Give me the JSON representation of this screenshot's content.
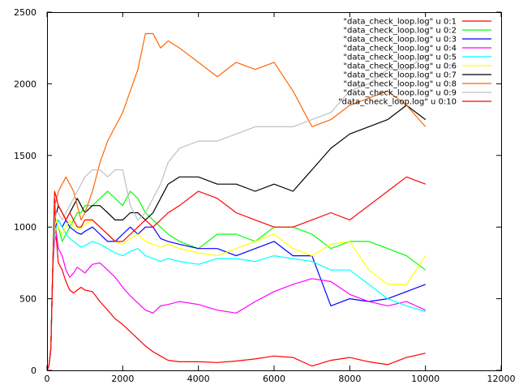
{
  "chart_data": {
    "type": "line",
    "title": "",
    "xlabel": "",
    "ylabel": "",
    "xlim": [
      0,
      12000
    ],
    "ylim": [
      0,
      2500
    ],
    "x_ticks": [
      0,
      2000,
      4000,
      6000,
      8000,
      10000,
      12000
    ],
    "y_ticks": [
      0,
      500,
      1000,
      1500,
      2000,
      2500
    ],
    "x_tick_labels": [
      "0",
      "2000",
      "4000",
      "6000",
      "8000",
      "10000",
      "12000"
    ],
    "y_tick_labels": [
      "0",
      "500",
      "1000",
      "1500",
      "2000",
      "2500"
    ],
    "grid": false,
    "legend_position": "top-right",
    "series": [
      {
        "name": "\"data_check_loop.log\" u 0:1",
        "color": "#ff0000",
        "x": [
          0,
          50,
          100,
          150,
          200,
          250,
          300,
          400,
          500,
          600,
          700,
          800,
          900,
          1000,
          1200,
          1400,
          1600,
          1800,
          2000,
          2200,
          2400,
          2600,
          2800,
          3000,
          3200,
          3500,
          4000,
          4500,
          5000,
          5500,
          6000,
          6500,
          7000,
          7500,
          8000,
          8500,
          9000,
          9500,
          10000
        ],
        "values": [
          0,
          30,
          150,
          700,
          1200,
          900,
          750,
          700,
          620,
          560,
          540,
          560,
          580,
          560,
          550,
          480,
          420,
          360,
          320,
          270,
          220,
          170,
          130,
          100,
          70,
          60,
          60,
          55,
          65,
          80,
          100,
          90,
          30,
          70,
          90,
          60,
          40,
          90,
          120
        ]
      },
      {
        "name": "\"data_check_loop.log\" u 0:2",
        "color": "#00ff00",
        "x": [
          0,
          50,
          100,
          150,
          200,
          250,
          300,
          400,
          500,
          600,
          700,
          800,
          900,
          1000,
          1200,
          1400,
          1600,
          1800,
          2000,
          2200,
          2400,
          2600,
          2800,
          3000,
          3200,
          3500,
          4000,
          4500,
          5000,
          5500,
          6000,
          6500,
          7000,
          7500,
          8000,
          8500,
          9000,
          9500,
          10000
        ],
        "values": [
          0,
          30,
          150,
          700,
          1000,
          1050,
          1000,
          900,
          950,
          1000,
          1050,
          1100,
          1100,
          1150,
          1150,
          1200,
          1250,
          1200,
          1150,
          1250,
          1200,
          1100,
          1050,
          1000,
          950,
          900,
          850,
          950,
          950,
          900,
          1000,
          1000,
          950,
          850,
          900,
          900,
          850,
          800,
          700
        ]
      },
      {
        "name": "\"data_check_loop.log\" u 0:3",
        "color": "#0000ff",
        "x": [
          0,
          50,
          100,
          150,
          200,
          250,
          300,
          400,
          500,
          600,
          700,
          800,
          900,
          1000,
          1200,
          1400,
          1600,
          1800,
          2000,
          2200,
          2400,
          2600,
          2800,
          3000,
          3200,
          3500,
          4000,
          4500,
          5000,
          5500,
          6000,
          6500,
          7000,
          7500,
          8000,
          8500,
          9000,
          9500,
          10000
        ],
        "values": [
          0,
          30,
          150,
          700,
          1000,
          1020,
          1050,
          1000,
          1050,
          1000,
          980,
          960,
          950,
          970,
          1000,
          950,
          900,
          900,
          950,
          1000,
          950,
          1000,
          1000,
          920,
          900,
          880,
          850,
          850,
          800,
          850,
          900,
          800,
          800,
          450,
          500,
          480,
          500,
          550,
          600
        ]
      },
      {
        "name": "\"data_check_loop.log\" u 0:4",
        "color": "#ff00ff",
        "x": [
          0,
          50,
          100,
          150,
          200,
          250,
          300,
          400,
          500,
          600,
          700,
          800,
          900,
          1000,
          1200,
          1400,
          1600,
          1800,
          2000,
          2200,
          2400,
          2600,
          2800,
          3000,
          3200,
          3500,
          4000,
          4500,
          5000,
          5500,
          6000,
          6500,
          7000,
          7500,
          8000,
          8500,
          9000,
          9500,
          10000
        ],
        "values": [
          0,
          30,
          150,
          700,
          900,
          950,
          850,
          800,
          700,
          650,
          680,
          720,
          700,
          680,
          740,
          750,
          700,
          650,
          580,
          520,
          470,
          420,
          400,
          450,
          460,
          480,
          460,
          420,
          400,
          480,
          550,
          600,
          640,
          620,
          530,
          480,
          450,
          480,
          420
        ]
      },
      {
        "name": "\"data_check_loop.log\" u 0:5",
        "color": "#00ffff",
        "x": [
          0,
          50,
          100,
          150,
          200,
          250,
          300,
          400,
          500,
          600,
          700,
          800,
          900,
          1000,
          1200,
          1400,
          1600,
          1800,
          2000,
          2200,
          2400,
          2600,
          2800,
          3000,
          3200,
          3500,
          4000,
          4500,
          5000,
          5500,
          6000,
          6500,
          7000,
          7500,
          8000,
          8500,
          9000,
          9500,
          10000
        ],
        "values": [
          0,
          30,
          150,
          700,
          950,
          1000,
          1050,
          1000,
          950,
          920,
          900,
          880,
          860,
          870,
          900,
          880,
          850,
          820,
          800,
          830,
          850,
          800,
          780,
          760,
          780,
          760,
          740,
          780,
          780,
          760,
          800,
          780,
          760,
          700,
          700,
          600,
          500,
          450,
          410
        ]
      },
      {
        "name": "\"data_check_loop.log\" u 0:6",
        "color": "#ffff00",
        "x": [
          0,
          50,
          100,
          150,
          200,
          250,
          300,
          400,
          500,
          600,
          700,
          800,
          900,
          1000,
          1200,
          1400,
          1600,
          1800,
          2000,
          2200,
          2400,
          2600,
          2800,
          3000,
          3200,
          3500,
          4000,
          4500,
          5000,
          5500,
          6000,
          6500,
          7000,
          7500,
          8000,
          8500,
          9000,
          9500,
          10000
        ],
        "values": [
          0,
          30,
          150,
          700,
          1000,
          1050,
          1000,
          950,
          1000,
          1050,
          1000,
          980,
          1000,
          1020,
          1050,
          1000,
          950,
          900,
          880,
          920,
          950,
          900,
          880,
          860,
          880,
          850,
          820,
          800,
          850,
          900,
          950,
          850,
          800,
          880,
          900,
          700,
          600,
          600,
          800
        ]
      },
      {
        "name": "\"data_check_loop.log\" u 0:7",
        "color": "#000000",
        "x": [
          0,
          50,
          100,
          150,
          200,
          250,
          300,
          400,
          500,
          600,
          700,
          800,
          900,
          1000,
          1200,
          1400,
          1600,
          1800,
          2000,
          2200,
          2400,
          2600,
          2800,
          3000,
          3200,
          3500,
          4000,
          4500,
          5000,
          5500,
          6000,
          6500,
          7000,
          7500,
          8000,
          8500,
          9000,
          9500,
          10000
        ],
        "values": [
          0,
          30,
          150,
          700,
          1050,
          1100,
          1150,
          1100,
          1050,
          1100,
          1150,
          1200,
          1150,
          1100,
          1150,
          1150,
          1100,
          1050,
          1050,
          1100,
          1100,
          1050,
          1100,
          1200,
          1300,
          1350,
          1350,
          1300,
          1300,
          1250,
          1300,
          1250,
          1400,
          1550,
          1650,
          1700,
          1750,
          1850,
          1750
        ]
      },
      {
        "name": "\"data_check_loop.log\" u 0:8",
        "color": "#ff6600",
        "x": [
          0,
          50,
          100,
          150,
          200,
          250,
          300,
          400,
          500,
          600,
          700,
          800,
          900,
          1000,
          1200,
          1400,
          1600,
          1800,
          2000,
          2200,
          2400,
          2600,
          2800,
          3000,
          3200,
          3500,
          4000,
          4500,
          5000,
          5500,
          6000,
          6500,
          7000,
          7500,
          8000,
          8500,
          9000,
          9500,
          10000
        ],
        "values": [
          0,
          30,
          150,
          700,
          1150,
          1200,
          1250,
          1300,
          1350,
          1300,
          1250,
          1150,
          1050,
          1100,
          1250,
          1450,
          1600,
          1700,
          1800,
          1950,
          2100,
          2350,
          2350,
          2250,
          2300,
          2250,
          2150,
          2050,
          2150,
          2100,
          2150,
          1950,
          1700,
          1750,
          1850,
          1900,
          1950,
          1850,
          1700
        ]
      },
      {
        "name": "\"data_check_loop.log\" u 0:9",
        "color": "#c0c0c0",
        "x": [
          0,
          50,
          100,
          150,
          200,
          250,
          300,
          400,
          500,
          600,
          700,
          800,
          900,
          1000,
          1200,
          1400,
          1600,
          1800,
          2000,
          2200,
          2400,
          2600,
          2800,
          3000,
          3200,
          3500,
          4000,
          4500,
          5000,
          5500,
          6000,
          6500,
          7000,
          7500,
          8000,
          8500,
          9000,
          9500,
          10000
        ],
        "values": [
          0,
          30,
          150,
          700,
          1050,
          1100,
          1100,
          1050,
          1100,
          1150,
          1200,
          1250,
          1300,
          1350,
          1400,
          1400,
          1350,
          1400,
          1400,
          1150,
          1050,
          1100,
          1200,
          1300,
          1450,
          1550,
          1600,
          1600,
          1650,
          1700,
          1700,
          1700,
          1750,
          1800,
          1950,
          2000,
          2100,
          2100,
          2200
        ]
      },
      {
        "name": "\"data_check_loop.log\" u 0:10",
        "color": "#ff0000",
        "x": [
          0,
          50,
          100,
          150,
          200,
          250,
          300,
          400,
          500,
          600,
          700,
          800,
          900,
          1000,
          1200,
          1400,
          1600,
          1800,
          2000,
          2200,
          2400,
          2600,
          2800,
          3000,
          3200,
          3500,
          4000,
          4500,
          5000,
          5500,
          6000,
          6500,
          7000,
          7500,
          8000,
          8500,
          9000,
          9500,
          10000
        ],
        "values": [
          0,
          30,
          150,
          700,
          1250,
          1200,
          1150,
          1100,
          1050,
          1100,
          1050,
          1000,
          1000,
          1050,
          1050,
          1000,
          950,
          900,
          900,
          950,
          1000,
          1050,
          1000,
          1050,
          1100,
          1150,
          1250,
          1200,
          1100,
          1050,
          1000,
          1000,
          1050,
          1100,
          1050,
          1150,
          1250,
          1350,
          1300
        ]
      }
    ]
  }
}
